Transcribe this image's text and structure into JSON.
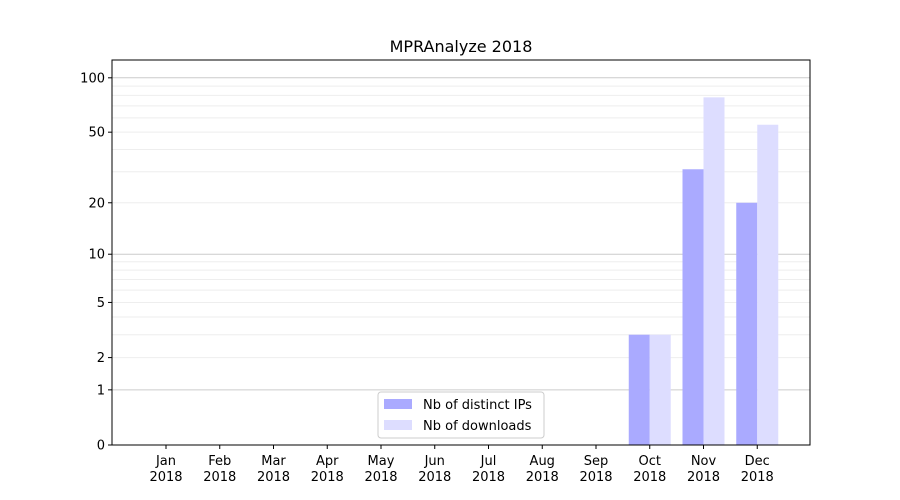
{
  "chart_data": {
    "type": "bar",
    "title": "MPRAnalyze 2018",
    "xlabel": "",
    "ylabel": "",
    "y_scale": "symlog (log10(1+y))",
    "ylim": [
      0,
      120
    ],
    "yticks": [
      0,
      1,
      2,
      5,
      10,
      20,
      50,
      100
    ],
    "grid": true,
    "legend_position": "bottom-center",
    "categories": [
      "Jan\n2018",
      "Feb\n2018",
      "Mar\n2018",
      "Apr\n2018",
      "May\n2018",
      "Jun\n2018",
      "Jul\n2018",
      "Aug\n2018",
      "Sep\n2018",
      "Oct\n2018",
      "Nov\n2018",
      "Dec\n2018"
    ],
    "series": [
      {
        "name": "Nb of distinct IPs",
        "color": "#aaaaff",
        "values": [
          0,
          0,
          0,
          0,
          0,
          0,
          0,
          0,
          0,
          3,
          31,
          20
        ]
      },
      {
        "name": "Nb of downloads",
        "color": "#ddddff",
        "values": [
          0,
          0,
          0,
          0,
          0,
          0,
          0,
          0,
          0,
          3,
          78,
          55
        ]
      }
    ]
  }
}
